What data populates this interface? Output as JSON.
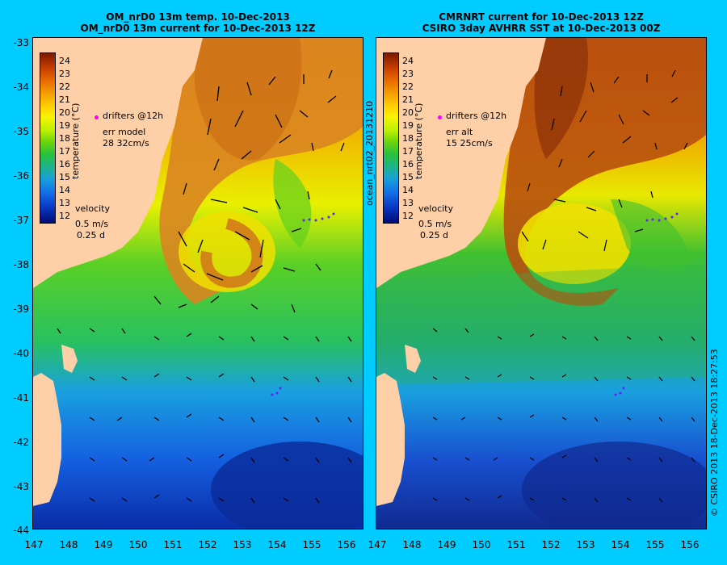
{
  "left_panel": {
    "title_line1": "OM_nrD0 13m temp. 10-Dec-2013",
    "title_line2": "OM_nrD0 13m current for 10-Dec-2013 12Z",
    "legend": {
      "drifters": "drifters @12h",
      "err_label": "err model",
      "err_value": "28 32cm/s",
      "velocity": "velocity",
      "speed": "0.5 m/s",
      "duration": "0.25 d"
    }
  },
  "right_panel": {
    "title_line1": "CMRNRT current for 10-Dec-2013 12Z",
    "title_line2": "CSIRO 3day AVHRR SST at 10-Dec-2013 00Z",
    "legend": {
      "drifters": "drifters @12h",
      "err_label": "err alt",
      "err_value": "15 25cm/s",
      "velocity": "velocity",
      "speed": "0.5 m/s",
      "duration": "0.25 d"
    }
  },
  "colorbar": {
    "unit_label": "temperature (°C)",
    "ticks": [
      "24",
      "23",
      "22",
      "21",
      "20",
      "19",
      "18",
      "17",
      "16",
      "15",
      "14",
      "13",
      "12"
    ],
    "range": [
      11.5,
      24.5
    ]
  },
  "axes": {
    "lat_labels": [
      "-33",
      "-34",
      "-35",
      "-36",
      "-37",
      "-38",
      "-39",
      "-40",
      "-41",
      "-42",
      "-43",
      "-44"
    ],
    "lon_labels": [
      "147",
      "148",
      "149",
      "150",
      "151",
      "152",
      "153",
      "154",
      "155",
      "156"
    ]
  },
  "side_text": {
    "file_id": "ocean_nrt02_20131210",
    "copyright": "© CSIRO 2013   18-Dec-2013 18:27:53"
  },
  "colors": {
    "background": "#00CCFF",
    "land": "#FFD0A8",
    "drifter": "#FF00FF"
  }
}
